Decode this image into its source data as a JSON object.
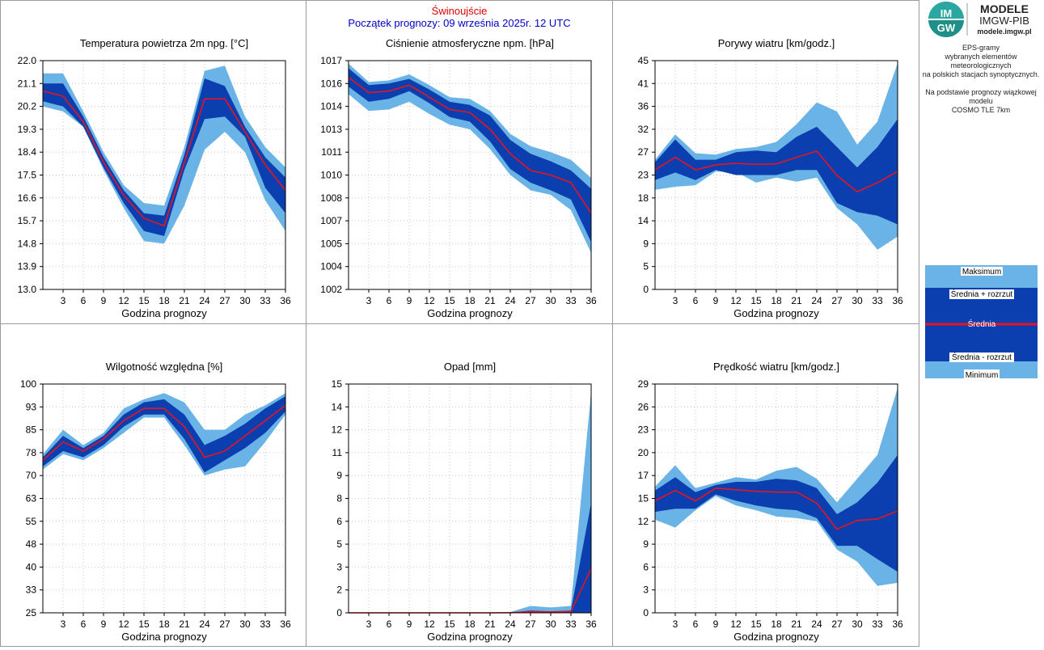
{
  "header": {
    "station": "Świnoujście",
    "start": "Początek prognozy: 09 września 2025r. 12 UTC"
  },
  "logo": {
    "line1": "MODELE",
    "line2": "IMGW-PIB",
    "url": "modele.imgw.pl",
    "mark": "IM GW"
  },
  "side": {
    "line1": "EPS-gramy",
    "line2": "wybranych elementów meteorologicznych",
    "line3": "na polskich stacjach  synoptycznych.",
    "line4": "Na podstawie prognozy wiązkowej modelu",
    "line5": "COSMO TLE 7km"
  },
  "legend": {
    "max": "Maksimum",
    "mean_plus": "Średnia + rozrzut",
    "mean": "Średnia",
    "mean_minus": "Średnia - rozrzut",
    "min": "Minimum"
  },
  "colors": {
    "light": "#6ab3e6",
    "dark": "#0b3eae",
    "mean": "#e8141e",
    "grid": "#c8c8c8"
  },
  "chart_data": [
    {
      "type": "area",
      "title": "Temperatura powietrza 2m npg. [°C]",
      "xlabel": "Godzina prognozy",
      "x": [
        0,
        3,
        6,
        9,
        12,
        15,
        18,
        21,
        24,
        27,
        30,
        33,
        36
      ],
      "xticks": [
        3,
        6,
        9,
        12,
        15,
        18,
        21,
        24,
        27,
        30,
        33,
        36
      ],
      "yticks": [
        "13.0",
        "13.9",
        "14.8",
        "15.7",
        "16.6",
        "17.5",
        "18.4",
        "19.3",
        "20.2",
        "21.1",
        "22.0"
      ],
      "ylim": [
        13.0,
        22.0
      ],
      "series": [
        {
          "name": "Maksimum",
          "values": [
            21.5,
            21.5,
            20.0,
            18.4,
            17.1,
            16.4,
            16.3,
            18.6,
            21.6,
            21.8,
            19.8,
            18.6,
            17.8
          ]
        },
        {
          "name": "Średnia + rozrzut",
          "values": [
            21.1,
            21.1,
            19.8,
            18.2,
            16.9,
            16.0,
            15.9,
            18.3,
            21.3,
            21.0,
            19.4,
            18.2,
            17.4
          ]
        },
        {
          "name": "Średnia",
          "values": [
            20.8,
            20.6,
            19.6,
            18.0,
            16.7,
            15.8,
            15.5,
            18.0,
            20.5,
            20.5,
            19.2,
            17.9,
            16.9
          ]
        },
        {
          "name": "Średnia - rozrzut",
          "values": [
            20.4,
            20.2,
            19.4,
            17.8,
            16.4,
            15.3,
            15.1,
            17.7,
            19.7,
            19.8,
            19.0,
            17.0,
            16.0
          ]
        },
        {
          "name": "Minimum",
          "values": [
            20.2,
            20.0,
            19.4,
            17.7,
            16.2,
            14.9,
            14.8,
            16.3,
            18.5,
            19.2,
            18.4,
            16.5,
            15.3
          ]
        }
      ]
    },
    {
      "type": "area",
      "title": "Ciśnienie atmosferyczne npm. [hPa]",
      "xlabel": "Godzina prognozy",
      "x": [
        0,
        3,
        6,
        9,
        12,
        15,
        18,
        21,
        24,
        27,
        30,
        33,
        36
      ],
      "xticks": [
        3,
        6,
        9,
        12,
        15,
        18,
        21,
        24,
        27,
        30,
        33,
        36
      ],
      "yticks": [
        "1002",
        "1004",
        "1005",
        "1007",
        "1008",
        "1010",
        "1011",
        "1013",
        "1014",
        "1016",
        "1017"
      ],
      "ylim": [
        1002,
        1017
      ],
      "series": [
        {
          "name": "Maksimum",
          "values": [
            1016.8,
            1015.6,
            1015.7,
            1016.1,
            1015.4,
            1014.6,
            1014.5,
            1013.7,
            1012.2,
            1011.4,
            1011.0,
            1010.5,
            1009.3
          ]
        },
        {
          "name": "Średnia + rozrzut",
          "values": [
            1016.5,
            1015.4,
            1015.5,
            1015.8,
            1015.1,
            1014.3,
            1014.1,
            1013.4,
            1011.8,
            1010.9,
            1010.4,
            1009.8,
            1008.6
          ]
        },
        {
          "name": "Średnia",
          "values": [
            1015.9,
            1014.9,
            1015.0,
            1015.4,
            1014.6,
            1013.8,
            1013.6,
            1012.5,
            1010.9,
            1009.8,
            1009.5,
            1009.0,
            1007.0
          ]
        },
        {
          "name": "Średnia - rozrzut",
          "values": [
            1015.3,
            1014.3,
            1014.5,
            1015.0,
            1014.2,
            1013.3,
            1013.0,
            1011.7,
            1009.9,
            1009.0,
            1008.5,
            1007.9,
            1005.1
          ]
        },
        {
          "name": "Minimum",
          "values": [
            1014.8,
            1013.7,
            1013.8,
            1014.3,
            1013.5,
            1012.8,
            1012.5,
            1011.2,
            1009.5,
            1008.5,
            1008.2,
            1007.2,
            1004.4
          ]
        }
      ]
    },
    {
      "type": "area",
      "title": "Porywy wiatru [km/godz.]",
      "xlabel": "Godzina prognozy",
      "x": [
        0,
        3,
        6,
        9,
        12,
        15,
        18,
        21,
        24,
        27,
        30,
        33,
        36
      ],
      "xticks": [
        3,
        6,
        9,
        12,
        15,
        18,
        21,
        24,
        27,
        30,
        33,
        36
      ],
      "yticks": [
        "0",
        "5",
        "9",
        "14",
        "18",
        "23",
        "27",
        "32",
        "36",
        "41",
        "45"
      ],
      "ylim": [
        0,
        45
      ],
      "series": [
        {
          "name": "Maksimum",
          "values": [
            25.5,
            30.5,
            26.8,
            26.5,
            27.6,
            28.0,
            29.0,
            32.5,
            36.8,
            35.0,
            28.5,
            33.0,
            44.5
          ]
        },
        {
          "name": "Średnia + rozrzut",
          "values": [
            25.0,
            29.5,
            25.5,
            25.5,
            27.0,
            27.3,
            27.0,
            30.0,
            32.0,
            28.0,
            24.0,
            28.0,
            33.5
          ]
        },
        {
          "name": "Średnia",
          "values": [
            23.5,
            26.0,
            23.5,
            24.5,
            24.8,
            24.6,
            24.7,
            26.0,
            27.2,
            22.4,
            19.2,
            21.0,
            23.2
          ]
        },
        {
          "name": "Średnia - rozrzut",
          "values": [
            21.5,
            23.0,
            21.5,
            23.5,
            22.5,
            22.5,
            22.5,
            23.5,
            23.5,
            17.0,
            15.2,
            14.5,
            12.8
          ]
        },
        {
          "name": "Minimum",
          "values": [
            19.6,
            20.2,
            20.5,
            23.2,
            23.1,
            21.0,
            22.0,
            21.2,
            22.0,
            16.0,
            12.8,
            7.8,
            10.4
          ]
        }
      ]
    },
    {
      "type": "area",
      "title": "Wilgotność względna [%]",
      "xlabel": "Godzina prognozy",
      "x": [
        0,
        3,
        6,
        9,
        12,
        15,
        18,
        21,
        24,
        27,
        30,
        33,
        36
      ],
      "xticks": [
        3,
        6,
        9,
        12,
        15,
        18,
        21,
        24,
        27,
        30,
        33,
        36
      ],
      "yticks": [
        "25",
        "33",
        "40",
        "48",
        "55",
        "63",
        "70",
        "78",
        "85",
        "93",
        "100"
      ],
      "ylim": [
        25,
        100
      ],
      "series": [
        {
          "name": "Maksimum",
          "values": [
            77,
            85,
            80,
            84,
            92,
            95,
            97,
            94,
            85,
            85,
            90,
            93,
            97
          ]
        },
        {
          "name": "Średnia + rozrzut",
          "values": [
            76,
            83,
            79,
            83,
            90,
            94,
            95,
            90,
            80,
            83,
            87,
            92,
            96
          ]
        },
        {
          "name": "Średnia",
          "values": [
            75,
            81,
            78,
            82,
            88,
            92,
            92,
            86,
            76,
            78,
            83,
            88,
            93
          ]
        },
        {
          "name": "Średnia - rozrzut",
          "values": [
            73,
            78,
            76,
            80,
            86,
            90,
            90,
            82,
            71,
            75,
            79,
            84,
            91
          ]
        },
        {
          "name": "Minimum",
          "values": [
            72,
            77,
            75,
            79,
            84,
            89,
            89,
            80,
            70,
            72,
            73,
            81,
            90
          ]
        }
      ]
    },
    {
      "type": "area",
      "title": "Opad [mm]",
      "xlabel": "Godzina prognozy",
      "x": [
        0,
        3,
        6,
        9,
        12,
        15,
        18,
        21,
        24,
        27,
        30,
        33,
        36
      ],
      "xticks": [
        3,
        6,
        9,
        12,
        15,
        18,
        21,
        24,
        27,
        30,
        33,
        36
      ],
      "yticks": [
        "0",
        "2",
        "3",
        "5",
        "6",
        "8",
        "9",
        "11",
        "12",
        "14",
        "15"
      ],
      "ylim": [
        0,
        15
      ],
      "series": [
        {
          "name": "Maksimum",
          "values": [
            0,
            0,
            0,
            0,
            0,
            0,
            0,
            0,
            0.05,
            0.45,
            0.35,
            0.45,
            14.5
          ]
        },
        {
          "name": "Średnia + rozrzut",
          "values": [
            0,
            0,
            0,
            0,
            0,
            0,
            0,
            0,
            0.02,
            0.15,
            0.1,
            0.15,
            7.2
          ]
        },
        {
          "name": "Średnia",
          "values": [
            0,
            0,
            0,
            0,
            0,
            0,
            0,
            0,
            0.01,
            0.07,
            0.05,
            0.08,
            2.9
          ]
        },
        {
          "name": "Średnia - rozrzut",
          "values": [
            0,
            0,
            0,
            0,
            0,
            0,
            0,
            0,
            0,
            0,
            0,
            0,
            0
          ]
        },
        {
          "name": "Minimum",
          "values": [
            0,
            0,
            0,
            0,
            0,
            0,
            0,
            0,
            0,
            0,
            0,
            0,
            0
          ]
        }
      ]
    },
    {
      "type": "area",
      "title": "Prędkość wiatru [km/godz.]",
      "xlabel": "Godzina prognozy",
      "x": [
        0,
        3,
        6,
        9,
        12,
        15,
        18,
        21,
        24,
        27,
        30,
        33,
        36
      ],
      "xticks": [
        3,
        6,
        9,
        12,
        15,
        18,
        21,
        24,
        27,
        30,
        33,
        36
      ],
      "yticks": [
        "0",
        "3",
        "6",
        "9",
        "12",
        "15",
        "17",
        "20",
        "23",
        "26",
        "29"
      ],
      "ylim": [
        0,
        29
      ],
      "series": [
        {
          "name": "Maksimum",
          "values": [
            16.0,
            18.7,
            15.8,
            16.5,
            17.2,
            16.9,
            18.0,
            18.5,
            17.0,
            14.0,
            17.0,
            20.0,
            28.5
          ]
        },
        {
          "name": "Średnia + rozrzut",
          "values": [
            15.5,
            17.2,
            15.3,
            16.2,
            16.6,
            16.6,
            17.0,
            16.8,
            15.8,
            12.5,
            14.0,
            16.5,
            20.0
          ]
        },
        {
          "name": "Średnia",
          "values": [
            14.2,
            15.5,
            14.2,
            15.8,
            15.6,
            15.4,
            15.3,
            15.3,
            13.9,
            10.6,
            11.7,
            11.9,
            12.9
          ]
        },
        {
          "name": "Średnia - rozrzut",
          "values": [
            12.8,
            13.2,
            13.2,
            15.0,
            14.2,
            13.6,
            13.2,
            13.0,
            12.0,
            8.5,
            8.5,
            6.8,
            5.2
          ]
        },
        {
          "name": "Minimum",
          "values": [
            11.8,
            10.8,
            13.0,
            14.8,
            13.6,
            13.0,
            12.2,
            12.0,
            11.6,
            8.0,
            6.5,
            3.4,
            3.8
          ]
        }
      ]
    }
  ]
}
